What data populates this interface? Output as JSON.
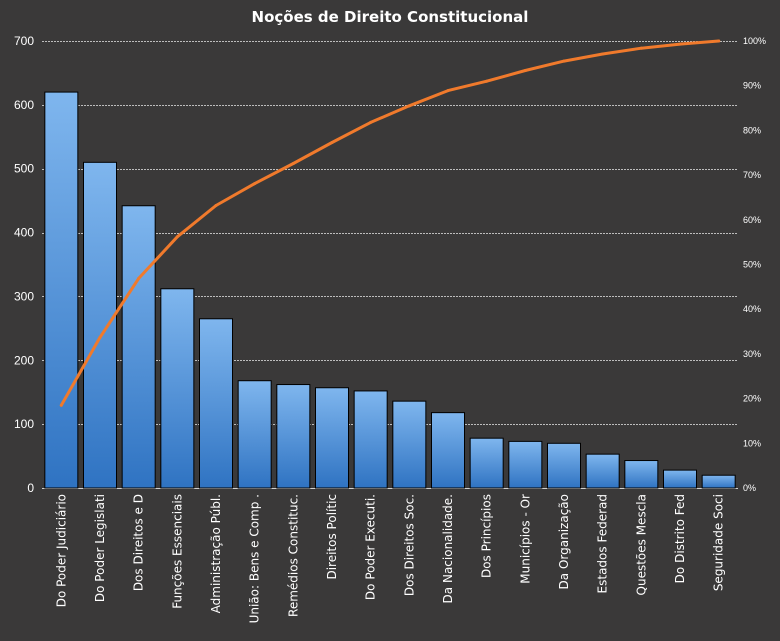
{
  "chart_data": {
    "type": "bar",
    "title": "Noções de Direito  Constitucional",
    "categories": [
      "Do Poder Judiciário",
      "Do Poder Legislati",
      "Dos Direitos e D",
      "Funções Essenciais",
      "Administração Públ.",
      "União: Bens e Comp .",
      "Remédios Constituc.",
      "Direitos Polític",
      "Do Poder Executi.",
      "Dos Direitos Soc.",
      "Da Nacionalidade.",
      "Dos Princípios",
      "Municípios - Or",
      "Da Organização",
      "Estados Federad",
      "Questões Mescla",
      "Do Distrito Fed",
      "Seguridade Soci"
    ],
    "series": [
      {
        "type": "bar",
        "axis": "left",
        "values": [
          620,
          510,
          442,
          312,
          265,
          168,
          162,
          157,
          152,
          136,
          118,
          78,
          73,
          70,
          53,
          43,
          28,
          20
        ]
      },
      {
        "type": "line",
        "axis": "right",
        "values": [
          18.5,
          33.7,
          46.9,
          56.2,
          63.2,
          68.1,
          72.6,
          77.3,
          81.8,
          85.5,
          88.9,
          91.0,
          93.4,
          95.5,
          97.1,
          98.4,
          99.3,
          100
        ]
      }
    ],
    "y_left": {
      "min": 0,
      "max": 700,
      "ticks": [
        0,
        100,
        200,
        300,
        400,
        500,
        600,
        700
      ]
    },
    "y_right": {
      "min": 0,
      "max": 100,
      "ticks": [
        "0%",
        "10%",
        "20%",
        "30%",
        "40%",
        "50%",
        "60%",
        "70%",
        "80%",
        "90%",
        "100%"
      ]
    },
    "grid": true,
    "legend": "none",
    "colors": {
      "background": "#3a3939",
      "bar_top": "#7fb6ee",
      "bar_bottom": "#2f73c2",
      "bar_border": "#000000",
      "line": "#f07a2c",
      "grid": "#bdbdbd",
      "text": "#ffffff"
    }
  }
}
